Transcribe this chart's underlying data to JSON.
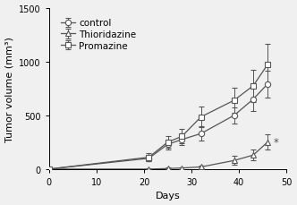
{
  "days": [
    0,
    21,
    25,
    28,
    32,
    39,
    43,
    46
  ],
  "control_mean": [
    0,
    100,
    230,
    275,
    330,
    500,
    650,
    790
  ],
  "control_err": [
    0,
    25,
    45,
    55,
    65,
    75,
    110,
    125
  ],
  "thioridazine_mean": [
    0,
    0,
    5,
    10,
    20,
    80,
    130,
    250
  ],
  "thioridazine_err": [
    0,
    5,
    8,
    8,
    12,
    40,
    50,
    70
  ],
  "promazine_mean": [
    0,
    110,
    250,
    305,
    485,
    640,
    775,
    970
  ],
  "promazine_err": [
    0,
    35,
    55,
    65,
    95,
    115,
    150,
    190
  ],
  "xlabel": "Days",
  "ylabel": "Tumor volume (mm³)",
  "xlim": [
    0,
    50
  ],
  "ylim": [
    0,
    1500
  ],
  "xticks": [
    0,
    10,
    20,
    30,
    40,
    50
  ],
  "yticks": [
    0,
    500,
    1000,
    1500
  ],
  "control_label": "control",
  "thioridazine_label": "Thioridazine",
  "promazine_label": "Promazine",
  "line_color": "#555555",
  "bg_color": "#f0f0f0",
  "fontsize": 8,
  "legend_fontsize": 7.5
}
